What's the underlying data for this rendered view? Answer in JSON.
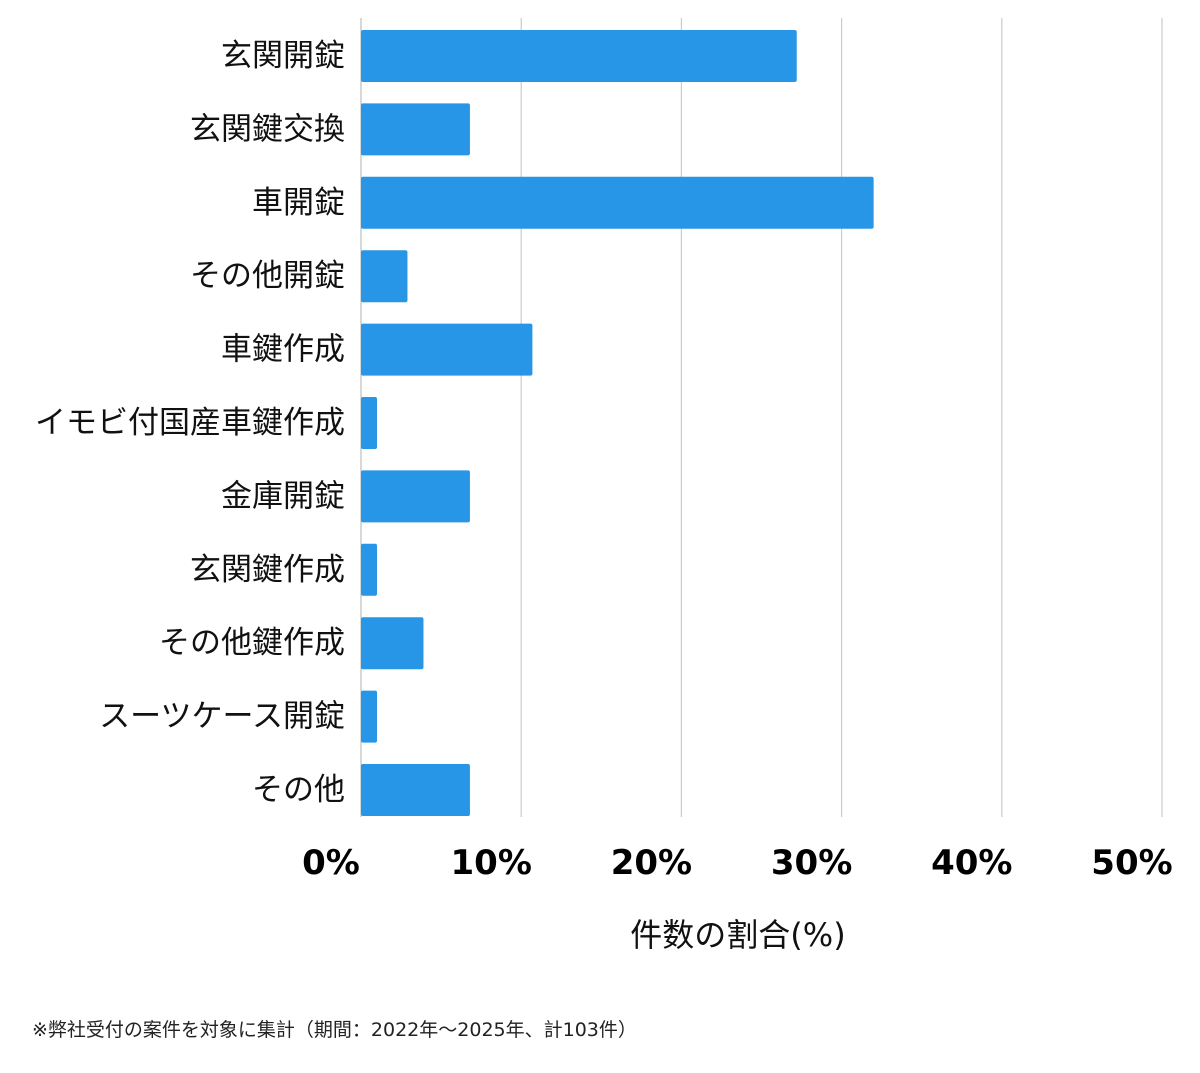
{
  "chart_data": {
    "type": "bar",
    "orientation": "horizontal",
    "categories": [
      "玄関開錠",
      "玄関鍵交換",
      "車開錠",
      "その他開錠",
      "車鍵作成",
      "イモビ付国産車鍵作成",
      "金庫開錠",
      "玄関鍵作成",
      "その他鍵作成",
      "スーツケース開錠",
      "その他"
    ],
    "values": [
      27.2,
      6.8,
      32.0,
      2.9,
      10.7,
      1.0,
      6.8,
      1.0,
      3.9,
      1.0,
      6.8
    ],
    "xlabel": "件数の割合(%)",
    "xlim": [
      0,
      50
    ],
    "xticks": [
      0,
      10,
      20,
      30,
      40,
      50
    ],
    "xtick_labels": [
      "0%",
      "10%",
      "20%",
      "30%",
      "40%",
      "50%"
    ],
    "grid": "vertical",
    "legend": "none",
    "bar_color": "#2896e6",
    "grid_color": "#cccccc"
  },
  "footnote": "※弊社受付の案件を対象に集計（期間：2022年〜2025年、計103件）"
}
